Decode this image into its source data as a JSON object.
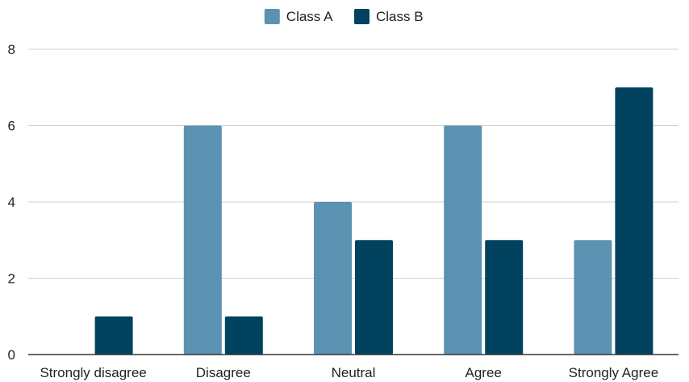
{
  "chart_data": {
    "type": "bar",
    "title": "",
    "xlabel": "",
    "ylabel": "",
    "categories": [
      "Strongly disagree",
      "Disagree",
      "Neutral",
      "Agree",
      "Strongly Agree"
    ],
    "series": [
      {
        "name": "Class A",
        "color": "#5b92b2",
        "values": [
          0,
          6,
          4,
          6,
          3
        ]
      },
      {
        "name": "Class B",
        "color": "#01425f",
        "values": [
          1,
          1,
          3,
          3,
          7
        ]
      }
    ],
    "ylim": [
      0,
      8
    ],
    "yticks": [
      0,
      2,
      4,
      6,
      8
    ],
    "grid": true,
    "legend_position": "top-center",
    "gridline_color": "#d0d0d0",
    "axis_color": "#333333"
  }
}
